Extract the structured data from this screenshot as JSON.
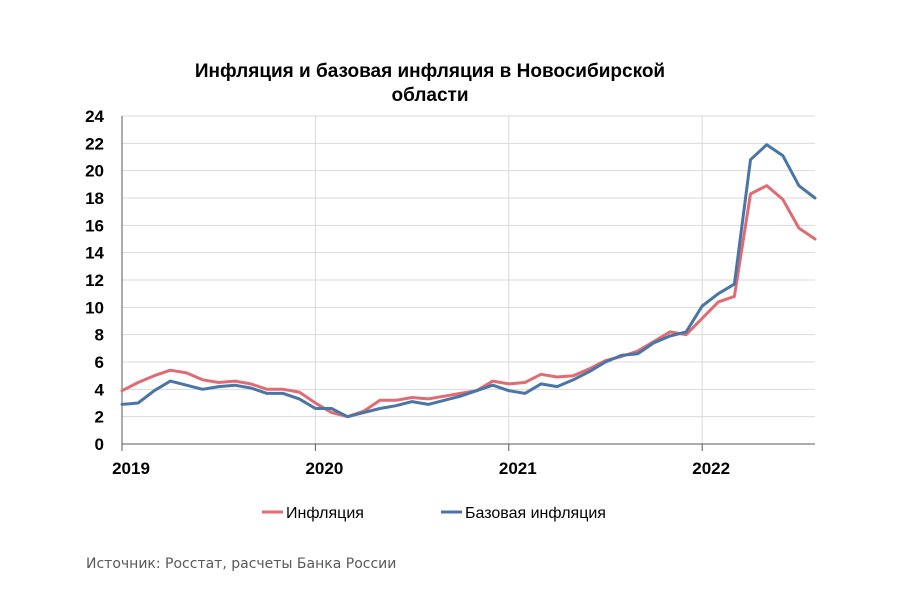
{
  "chart_data": {
    "type": "line",
    "title_lines": [
      "Инфляция и базовая инфляция в Новосибирской",
      "области"
    ],
    "ylim": [
      0,
      24
    ],
    "yticks": [
      0,
      2,
      4,
      6,
      8,
      10,
      12,
      14,
      16,
      18,
      20,
      22,
      24
    ],
    "xlim": [
      0,
      43
    ],
    "xtick_labels": [
      {
        "label": "2019",
        "x": 0
      },
      {
        "label": "2020",
        "x": 12
      },
      {
        "label": "2021",
        "x": 24
      },
      {
        "label": "2022",
        "x": 36
      }
    ],
    "grid": true,
    "legend_position": "bottom",
    "series": [
      {
        "name": "Инфляция",
        "color": "#E06B73",
        "values": [
          3.9,
          4.5,
          5.0,
          5.4,
          5.2,
          4.7,
          4.5,
          4.6,
          4.4,
          4.0,
          4.0,
          3.8,
          3.0,
          2.3,
          2.0,
          2.4,
          3.2,
          3.2,
          3.4,
          3.3,
          3.5,
          3.7,
          3.9,
          4.6,
          4.4,
          4.5,
          5.1,
          4.9,
          5.0,
          5.5,
          6.1,
          6.4,
          6.8,
          7.5,
          8.2,
          8.0,
          9.2,
          10.4,
          10.8,
          18.3,
          18.9,
          17.9,
          15.8,
          15.0
        ]
      },
      {
        "name": "Базовая инфляция",
        "color": "#4A75A7",
        "values": [
          2.9,
          3.0,
          3.9,
          4.6,
          4.3,
          4.0,
          4.2,
          4.3,
          4.1,
          3.7,
          3.7,
          3.3,
          2.6,
          2.6,
          2.0,
          2.3,
          2.6,
          2.8,
          3.1,
          2.9,
          3.2,
          3.5,
          3.9,
          4.3,
          3.9,
          3.7,
          4.4,
          4.2,
          4.7,
          5.3,
          6.0,
          6.5,
          6.6,
          7.4,
          7.9,
          8.2,
          10.1,
          11.0,
          11.7,
          20.8,
          21.9,
          21.1,
          18.9,
          18.0
        ]
      }
    ]
  },
  "source": "Источник: Росстат, расчеты Банка России"
}
